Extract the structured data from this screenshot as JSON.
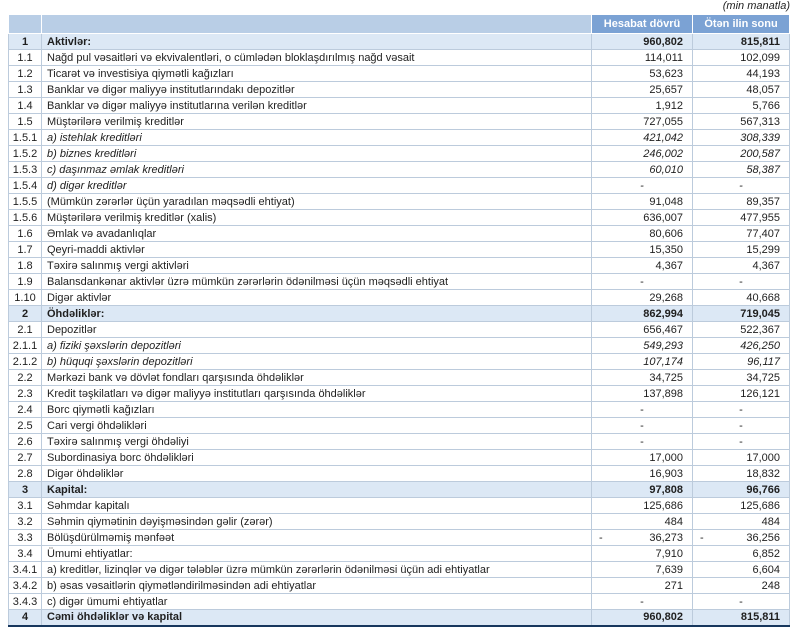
{
  "note": "(min manatla)",
  "columns": {
    "period": "Hesabat dövrü",
    "previous": "Ötən ilin sonu"
  },
  "colors": {
    "header_blue": "#7ba2d4",
    "header_light_blue": "#b9cee6",
    "section_row_bg": "#dce8f5",
    "grid_line": "#bccbdc",
    "bottom_rule": "#17375d",
    "text": "#1f1f1f",
    "header_text": "#ffffff"
  },
  "rows": [
    {
      "no": "1",
      "label": "Aktivlər:",
      "v1": "960,802",
      "v2": "815,811",
      "style": "section"
    },
    {
      "no": "1.1",
      "label": "Nağd pul vəsaitləri və  ekvivalentləri, o cümlədən bloklaşdırılmış nağd vəsait",
      "v1": "114,011",
      "v2": "102,099"
    },
    {
      "no": "1.2",
      "label": "Ticarət və investisiya qiymətli kağızları",
      "v1": "53,623",
      "v2": "44,193"
    },
    {
      "no": "1.3",
      "label": "Banklar və digər maliyyə institutlarındakı depozitlər",
      "v1": "25,657",
      "v2": "48,057"
    },
    {
      "no": "1.4",
      "label": "Banklar və digər maliyyə institutlarına verilən kreditlər",
      "v1": "1,912",
      "v2": "5,766"
    },
    {
      "no": "1.5",
      "label": "Müştərilərə verilmiş kreditlər",
      "v1": "727,055",
      "v2": "567,313"
    },
    {
      "no": "1.5.1",
      "label": "a) istehlak kreditləri",
      "v1": "421,042",
      "v2": "308,339",
      "style": "italic"
    },
    {
      "no": "1.5.2",
      "label": "b) biznes kreditləri",
      "v1": "246,002",
      "v2": "200,587",
      "style": "italic"
    },
    {
      "no": "1.5.3",
      "label": "c) daşınmaz əmlak kreditləri",
      "v1": "60,010",
      "v2": "58,387",
      "style": "italic"
    },
    {
      "no": "1.5.4",
      "label": "d) digər kreditlər",
      "v1": "-",
      "v2": "-",
      "style": "italic"
    },
    {
      "no": "1.5.5",
      "label": "(Mümkün zərərlər üçün yaradılan məqsədli ehtiyat)",
      "v1": "91,048",
      "v2": "89,357"
    },
    {
      "no": "1.5.6",
      "label": "Müştərilərə verilmiş kreditlər (xalis)",
      "v1": "636,007",
      "v2": "477,955"
    },
    {
      "no": "1.6",
      "label": "Əmlak və avadanlıqlar",
      "v1": "80,606",
      "v2": "77,407"
    },
    {
      "no": "1.7",
      "label": "Qeyri-maddi aktivlər",
      "v1": "15,350",
      "v2": "15,299"
    },
    {
      "no": "1.8",
      "label": "Təxirə salınmış vergi aktivləri",
      "v1": "4,367",
      "v2": "4,367"
    },
    {
      "no": "1.9",
      "label": "Balansdankənar aktivlər üzrə mümkün zərərlərin ödənilməsi üçün məqsədli ehtiyat",
      "v1": "-",
      "v2": "-"
    },
    {
      "no": "1.10",
      "label": "Digər aktivlər",
      "v1": "29,268",
      "v2": "40,668"
    },
    {
      "no": "2",
      "label": "Öhdəliklər:",
      "v1": "862,994",
      "v2": "719,045",
      "style": "section"
    },
    {
      "no": "2.1",
      "label": "Depozitlər",
      "v1": "656,467",
      "v2": "522,367"
    },
    {
      "no": "2.1.1",
      "label": "a) fiziki şəxslərin depozitləri",
      "v1": "549,293",
      "v2": "426,250",
      "style": "italic"
    },
    {
      "no": "2.1.2",
      "label": "b) hüquqi şəxslərin depozitləri",
      "v1": "107,174",
      "v2": "96,117",
      "style": "italic"
    },
    {
      "no": "2.2",
      "label": "Mərkəzi bank və dövlət fondları qarşısında öhdəliklər",
      "v1": "34,725",
      "v2": "34,725"
    },
    {
      "no": "2.3",
      "label": "Kredit təşkilatları və digər maliyyə institutları qarşısında öhdəliklər",
      "v1": "137,898",
      "v2": "126,121"
    },
    {
      "no": "2.4",
      "label": "Borc qiymətli kağızları",
      "v1": "-",
      "v2": "-"
    },
    {
      "no": "2.5",
      "label": "Cari vergi öhdəlikləri",
      "v1": "-",
      "v2": "-"
    },
    {
      "no": "2.6",
      "label": "Təxirə salınmış vergi öhdəliyi",
      "v1": "-",
      "v2": "-"
    },
    {
      "no": "2.7",
      "label": "Subordinasiya borc öhdəlikləri",
      "v1": "17,000",
      "v2": "17,000"
    },
    {
      "no": "2.8",
      "label": "Digər öhdəliklər",
      "v1": "16,903",
      "v2": "18,832"
    },
    {
      "no": "3",
      "label": "Kapital:",
      "v1": "97,808",
      "v2": "96,766",
      "style": "section"
    },
    {
      "no": "3.1",
      "label": "Səhmdar kapitalı",
      "v1": "125,686",
      "v2": "125,686"
    },
    {
      "no": "3.2",
      "label": "Səhmin qiymətinin dəyişməsindən gəlir (zərər)",
      "v1": "484",
      "v2": "484"
    },
    {
      "no": "3.3",
      "label": "Bölüşdürülməmiş mənfəət",
      "v1": "36,273",
      "v2": "36,256",
      "negative": true
    },
    {
      "no": "3.4",
      "label": "Ümumi ehtiyatlar:",
      "v1": "7,910",
      "v2": "6,852"
    },
    {
      "no": "3.4.1",
      "label": "a) kreditlər, lizinqlər və digər tələblər üzrə mümkün zərərlərin ödənilməsi üçün adi ehtiyatlar",
      "v1": "7,639",
      "v2": "6,604"
    },
    {
      "no": "3.4.2",
      "label": "b) əsas vəsaitlərin qiymətləndirilməsindən adi ehtiyatlar",
      "v1": "271",
      "v2": "248"
    },
    {
      "no": "3.4.3",
      "label": "c) digər ümumi ehtiyatlar",
      "v1": "-",
      "v2": "-"
    },
    {
      "no": "4",
      "label": "Cəmi öhdəliklər və kapital",
      "v1": "960,802",
      "v2": "815,811",
      "style": "section"
    }
  ]
}
